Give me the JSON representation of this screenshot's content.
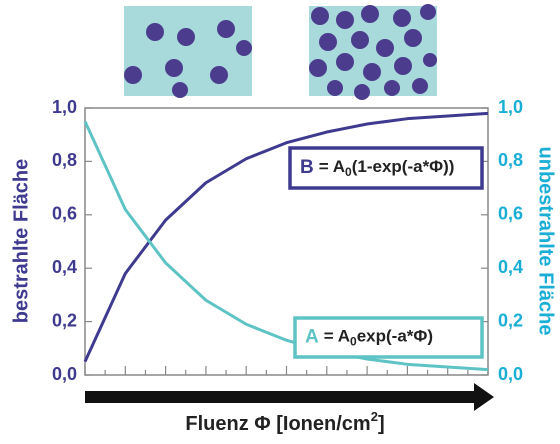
{
  "chart_data": {
    "type": "line",
    "x_label_parts": [
      "Fluenz Φ [Ionen/cm",
      "2",
      "]"
    ],
    "y_label": "bestrahlte Fläche",
    "y2_label": "unbestrahlte Fläche",
    "x": [
      0,
      1,
      2,
      3,
      4,
      5,
      6,
      7,
      8,
      9,
      10
    ],
    "xlim": [
      0,
      10
    ],
    "xticks": [
      0,
      0.5,
      1,
      1.5,
      2,
      2.5,
      3,
      3.5,
      4,
      4.5,
      5,
      5.5,
      6,
      6.5,
      7,
      7.5,
      8,
      8.5,
      9,
      9.5,
      10
    ],
    "ylim": [
      0,
      1
    ],
    "yticks": [
      {
        "value": 0,
        "label": "0,0"
      },
      {
        "value": 0.2,
        "label": "0,2"
      },
      {
        "value": 0.4,
        "label": "0,4"
      },
      {
        "value": 0.6,
        "label": "0,6"
      },
      {
        "value": 0.8,
        "label": "0,8"
      },
      {
        "value": 1,
        "label": "1,0"
      }
    ],
    "y2lim": [
      0,
      1
    ],
    "y2ticks": [
      {
        "value": 0,
        "label": "0,0"
      },
      {
        "value": 0.2,
        "label": "0,2"
      },
      {
        "value": 0.4,
        "label": "0,4"
      },
      {
        "value": 0.6,
        "label": "0,6"
      },
      {
        "value": 0.8,
        "label": "0,8"
      },
      {
        "value": 1,
        "label": "1,0"
      }
    ],
    "series": [
      {
        "color": "#3e3a8f",
        "values": [
          0.05,
          0.38,
          0.58,
          0.72,
          0.81,
          0.87,
          0.91,
          0.94,
          0.96,
          0.97,
          0.98
        ]
      },
      {
        "color": "#5ec3c4",
        "axis": "y2",
        "values": [
          0.95,
          0.62,
          0.42,
          0.28,
          0.19,
          0.13,
          0.09,
          0.06,
          0.04,
          0.03,
          0.02
        ]
      }
    ],
    "annotations": [
      {
        "letter": "B",
        "lhs": "= A",
        "sub": "0",
        "rhs": "(1-exp(-a*Φ))",
        "color": "#3e3a8f"
      },
      {
        "letter": "A",
        "lhs": "= A",
        "sub": "0",
        "rhs": "exp(-a*Φ)",
        "color": "#5ec3c4"
      }
    ]
  }
}
